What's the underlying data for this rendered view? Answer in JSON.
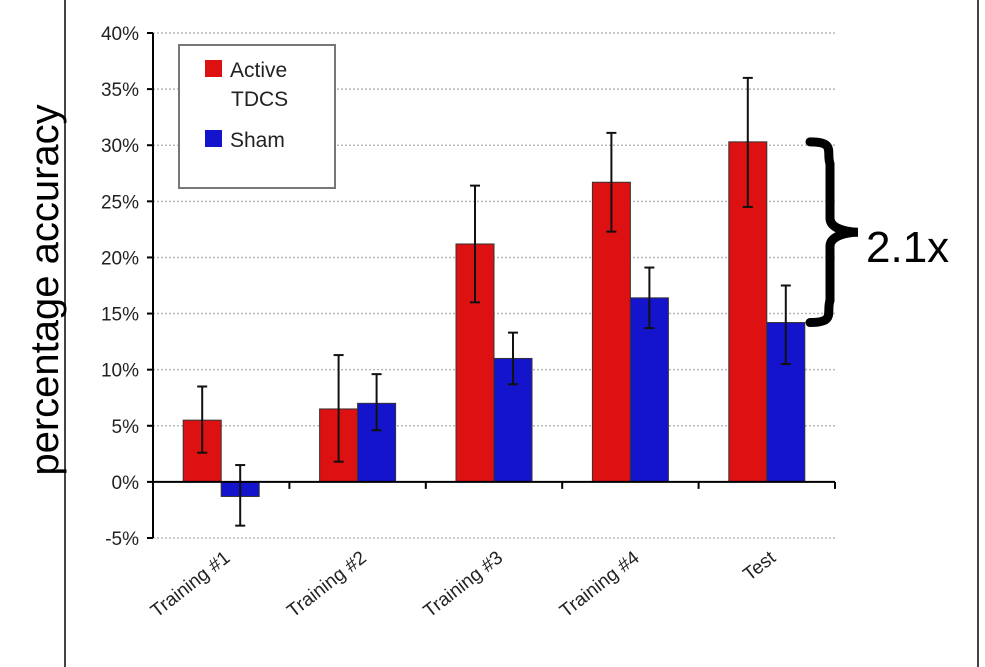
{
  "chart_data": {
    "type": "bar",
    "ylabel": "percentage accuracy",
    "xlabel": "",
    "categories": [
      "Training #1",
      "Training #2",
      "Training #3",
      "Training #4",
      "Test"
    ],
    "ylim": [
      -5,
      40
    ],
    "yticks": [
      -5,
      0,
      5,
      10,
      15,
      20,
      25,
      30,
      35,
      40
    ],
    "ytick_labels": [
      "-5%",
      "0%",
      "5%",
      "10%",
      "15%",
      "20%",
      "25%",
      "30%",
      "35%",
      "40%"
    ],
    "grid": true,
    "legend_position": "top-left",
    "series": [
      {
        "name": "Active TDCS",
        "legend_lines": [
          "Active",
          "TDCS"
        ],
        "color": "#dd1111",
        "values": [
          5.5,
          6.5,
          21.2,
          26.7,
          30.3
        ],
        "error_low": [
          2.6,
          1.8,
          16.0,
          22.3,
          24.5
        ],
        "error_high": [
          8.5,
          11.3,
          26.4,
          31.1,
          36.0
        ]
      },
      {
        "name": "Sham",
        "legend_lines": [
          "Sham"
        ],
        "color": "#1414cc",
        "values": [
          -1.3,
          7.0,
          11.0,
          16.4,
          14.2
        ],
        "error_low": [
          -3.9,
          4.6,
          8.7,
          13.7,
          10.5
        ],
        "error_high": [
          1.5,
          9.6,
          13.3,
          19.1,
          17.5
        ]
      }
    ],
    "annotation": {
      "text": "2.1x",
      "spans_from": 30.3,
      "spans_to": 14.2
    }
  }
}
